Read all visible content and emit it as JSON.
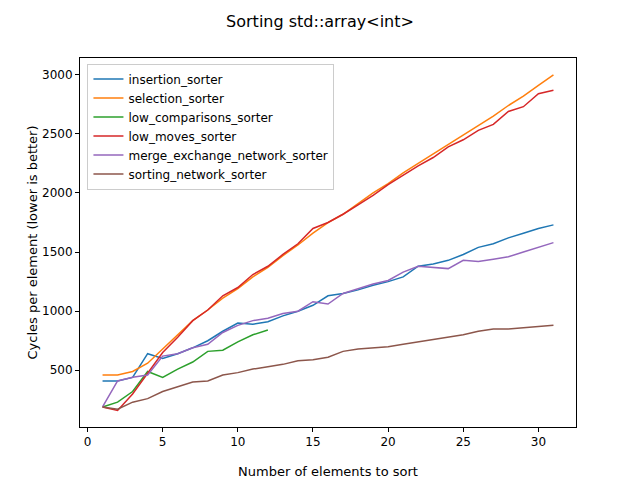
{
  "chart_data": {
    "type": "line",
    "title": "Sorting std::array<int>",
    "x_label": "Number of elements to sort",
    "y_label": "Cycles per element (lower is better)",
    "x": [
      1,
      2,
      3,
      4,
      5,
      6,
      7,
      8,
      9,
      10,
      11,
      12,
      13,
      14,
      15,
      16,
      17,
      18,
      19,
      20,
      21,
      22,
      23,
      24,
      25,
      26,
      27,
      28,
      29,
      30,
      31
    ],
    "series": [
      {
        "name": "insertion_sorter",
        "color": "#1f77b4",
        "values": [
          410,
          410,
          440,
          640,
          600,
          640,
          690,
          750,
          830,
          900,
          890,
          910,
          960,
          1000,
          1050,
          1130,
          1150,
          1180,
          1220,
          1250,
          1290,
          1380,
          1400,
          1430,
          1480,
          1540,
          1570,
          1620,
          1660,
          1700,
          1730
        ]
      },
      {
        "name": "selection_sorter",
        "color": "#ff7f0e",
        "values": [
          460,
          460,
          490,
          560,
          680,
          800,
          920,
          1010,
          1110,
          1190,
          1290,
          1370,
          1470,
          1560,
          1660,
          1750,
          1820,
          1910,
          2000,
          2080,
          2170,
          2250,
          2330,
          2410,
          2490,
          2570,
          2650,
          2740,
          2820,
          2910,
          3000
        ]
      },
      {
        "name": "low_comparisons_sorter",
        "color": "#2ca02c",
        "values": [
          190,
          230,
          320,
          490,
          440,
          510,
          570,
          660,
          670,
          740,
          800,
          840,
          null,
          null,
          null,
          null,
          null,
          null,
          null,
          null,
          null,
          null,
          null,
          null,
          null,
          null,
          null,
          null,
          null,
          null,
          null
        ]
      },
      {
        "name": "low_moves_sorter",
        "color": "#d62728",
        "values": [
          190,
          160,
          300,
          470,
          650,
          780,
          920,
          1010,
          1130,
          1200,
          1310,
          1380,
          1480,
          1570,
          1700,
          1750,
          1820,
          1900,
          1980,
          2070,
          2150,
          2230,
          2300,
          2390,
          2450,
          2530,
          2580,
          2690,
          2730,
          2840,
          2870
        ]
      },
      {
        "name": "merge_exchange_network_sorter",
        "color": "#9467bd",
        "values": [
          190,
          410,
          440,
          460,
          620,
          640,
          690,
          720,
          820,
          880,
          920,
          940,
          980,
          1000,
          1080,
          1060,
          1150,
          1190,
          1230,
          1260,
          1330,
          1380,
          1370,
          1360,
          1430,
          1420,
          1440,
          1460,
          1500,
          1540,
          1580
        ]
      },
      {
        "name": "sorting_network_sorter",
        "color": "#8c564b",
        "values": [
          190,
          170,
          230,
          260,
          320,
          360,
          400,
          410,
          460,
          480,
          510,
          530,
          550,
          580,
          590,
          610,
          660,
          680,
          690,
          700,
          720,
          740,
          760,
          780,
          800,
          830,
          850,
          850,
          860,
          870,
          880
        ]
      }
    ],
    "xlim": [
      -0.5,
      32.5
    ],
    "xticks": [
      0,
      5,
      10,
      15,
      20,
      25,
      30
    ],
    "ylim": [
      20,
      3142
    ],
    "yticks": [
      500,
      1000,
      1500,
      2000,
      2500,
      3000
    ],
    "grid": false,
    "legend": "upper left"
  }
}
